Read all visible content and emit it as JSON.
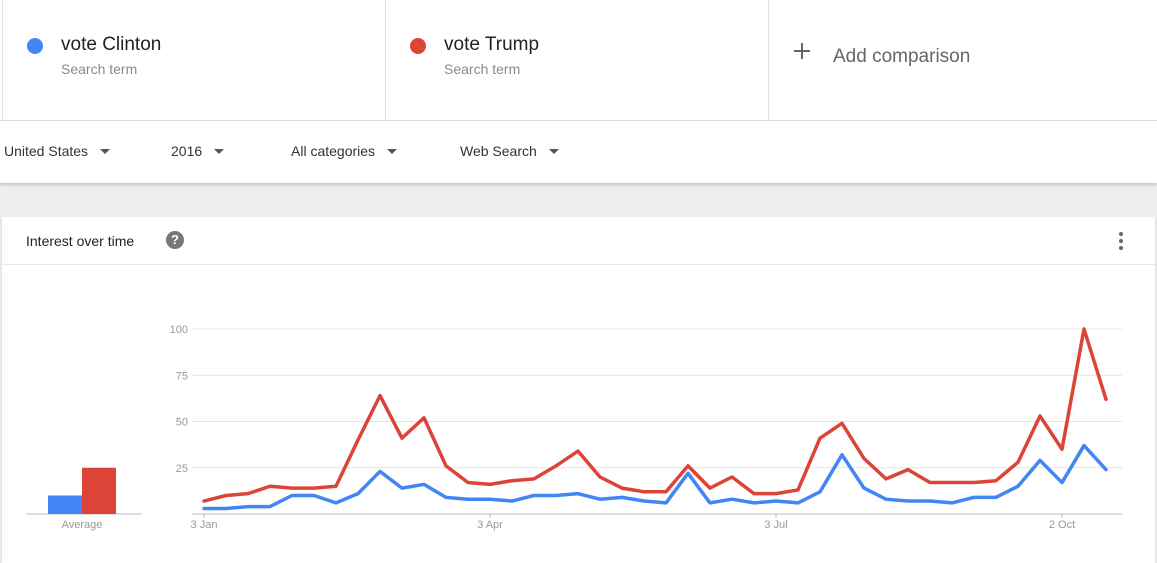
{
  "terms": [
    {
      "name": "vote Clinton",
      "sub": "Search term",
      "color": "#4285f4"
    },
    {
      "name": "vote Trump",
      "sub": "Search term",
      "color": "#db4437"
    }
  ],
  "add_comparison": "Add comparison",
  "filters": {
    "region": "United States",
    "year": "2016",
    "category": "All categories",
    "search_type": "Web Search"
  },
  "card": {
    "title": "Interest over time",
    "help_glyph": "?"
  },
  "chart_data": {
    "type": "line",
    "y_ticks": [
      "100",
      "75",
      "50",
      "25"
    ],
    "ylim": [
      0,
      100
    ],
    "x_tick_labels": [
      {
        "label": "3 Jan",
        "index": 0
      },
      {
        "label": "3 Apr",
        "index": 13
      },
      {
        "label": "3 Jul",
        "index": 26
      },
      {
        "label": "2 Oct",
        "index": 39
      }
    ],
    "series": [
      {
        "name": "vote Clinton",
        "color": "#4285f4",
        "values": [
          3,
          3,
          4,
          4,
          10,
          10,
          6,
          11,
          23,
          14,
          16,
          9,
          8,
          8,
          7,
          10,
          10,
          11,
          8,
          9,
          7,
          6,
          22,
          6,
          8,
          6,
          7,
          6,
          12,
          32,
          14,
          8,
          7,
          7,
          6,
          9,
          9,
          15,
          29,
          17,
          37,
          24
        ]
      },
      {
        "name": "vote Trump",
        "color": "#db4437",
        "values": [
          7,
          10,
          11,
          15,
          14,
          14,
          15,
          40,
          64,
          41,
          52,
          26,
          17,
          16,
          18,
          19,
          26,
          34,
          20,
          14,
          12,
          12,
          26,
          14,
          20,
          11,
          11,
          13,
          41,
          49,
          30,
          19,
          24,
          17,
          17,
          17,
          18,
          28,
          53,
          35,
          100,
          62
        ]
      }
    ],
    "average": {
      "label": "Average",
      "values": [
        10,
        25
      ]
    }
  }
}
